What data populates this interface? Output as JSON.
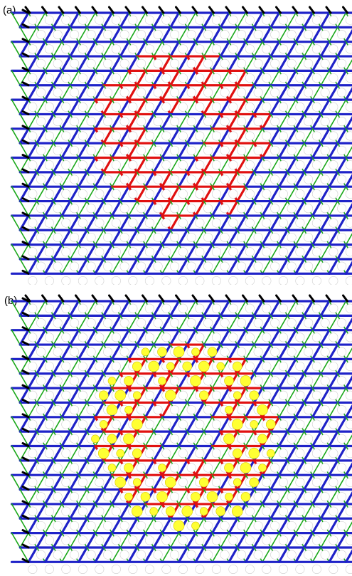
{
  "panels": [
    {
      "label": "(a)",
      "highlight": "none"
    },
    {
      "label": "(b)",
      "highlight": "yellow-circles"
    }
  ],
  "colors": {
    "bond_a": "#1f22c8",
    "bond_b": "#1aa81a",
    "bond_c": "#e01010",
    "atom": "#000000",
    "highlight": "#ffff33"
  }
}
